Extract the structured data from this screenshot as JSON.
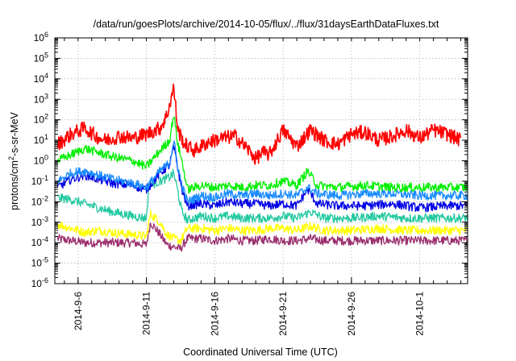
{
  "chart_data": {
    "type": "line",
    "title": "/data/run/goesPlots/archive/2014-10-05/flux/../flux/31daysEarthDataFluxes.txt",
    "xlabel": "Coordinated Universal Time (UTC)",
    "ylabel": "protons/cm2-s-sr-MeV",
    "ylabel_main": "protons/cm",
    "ylabel_sup": "2",
    "ylabel_rest": "-s-sr-MeV",
    "yscale": "log",
    "ylim_exp": [
      -6,
      6
    ],
    "ytick_labels": [
      {
        "base": "10",
        "exp": "6"
      },
      {
        "base": "10",
        "exp": "5"
      },
      {
        "base": "10",
        "exp": "4"
      },
      {
        "base": "10",
        "exp": "3"
      },
      {
        "base": "10",
        "exp": "2"
      },
      {
        "base": "10",
        "exp": "1"
      },
      {
        "base": "10",
        "exp": "0"
      },
      {
        "base": "10",
        "exp": "-1"
      },
      {
        "base": "10",
        "exp": "-2"
      },
      {
        "base": "10",
        "exp": "-3"
      },
      {
        "base": "10",
        "exp": "-4"
      },
      {
        "base": "10",
        "exp": "-5"
      },
      {
        "base": "10",
        "exp": "-6"
      }
    ],
    "xlim_days": [
      4.3,
      34.5
    ],
    "xtick_labels": [
      "2014-9-6",
      "2014-9-11",
      "2014-9-16",
      "2014-9-21",
      "2014-9-26",
      "2014-10-1"
    ],
    "xtick_days": [
      6,
      11,
      16,
      21,
      26,
      31
    ],
    "grid": true,
    "series": [
      {
        "color": "#ff0000",
        "values": [
          [
            4.5,
            0.8
          ],
          [
            5.5,
            1.3
          ],
          [
            6.5,
            1.6
          ],
          [
            7.3,
            1.2
          ],
          [
            8,
            1.0
          ],
          [
            9,
            1.2
          ],
          [
            10,
            1.1
          ],
          [
            11,
            1.3
          ],
          [
            12,
            1.6
          ],
          [
            12.5,
            2.2
          ],
          [
            13,
            3.6
          ],
          [
            13.3,
            1.5
          ],
          [
            13.8,
            0.8
          ],
          [
            14.5,
            0.5
          ],
          [
            15.5,
            0.9
          ],
          [
            16.5,
            1.1
          ],
          [
            17.5,
            1.2
          ],
          [
            18.5,
            0.5
          ],
          [
            19,
            0.1
          ],
          [
            19.5,
            0.4
          ],
          [
            20,
            0.3
          ],
          [
            21,
            1.5
          ],
          [
            22,
            0.7
          ],
          [
            23,
            1.5
          ],
          [
            24,
            1.0
          ],
          [
            25,
            0.8
          ],
          [
            26,
            1.3
          ],
          [
            27,
            1.4
          ],
          [
            28,
            1.0
          ],
          [
            29,
            1.2
          ],
          [
            30,
            1.5
          ],
          [
            31,
            1.1
          ],
          [
            32,
            1.5
          ],
          [
            33,
            1.3
          ],
          [
            34,
            1.0
          ]
        ]
      },
      {
        "color": "#00ee00",
        "values": [
          [
            4.5,
            0.0
          ],
          [
            5.5,
            0.3
          ],
          [
            6.5,
            0.6
          ],
          [
            7.5,
            0.4
          ],
          [
            8.5,
            0.2
          ],
          [
            10,
            0.0
          ],
          [
            11,
            -0.3
          ],
          [
            12,
            0.5
          ],
          [
            12.7,
            1.0
          ],
          [
            13,
            2.3
          ],
          [
            13.3,
            0.8
          ],
          [
            13.6,
            0.0
          ],
          [
            14.0,
            -1.4
          ],
          [
            15,
            -1.2
          ],
          [
            16,
            -1.3
          ],
          [
            17,
            -1.2
          ],
          [
            18,
            -1.3
          ],
          [
            19,
            -1.2
          ],
          [
            20,
            -1.2
          ],
          [
            21,
            -1.0
          ],
          [
            22,
            -1.2
          ],
          [
            22.8,
            -0.5
          ],
          [
            23.5,
            -1.2
          ],
          [
            25,
            -1.3
          ],
          [
            27,
            -1.2
          ],
          [
            29,
            -1.3
          ],
          [
            31,
            -1.3
          ],
          [
            33,
            -1.3
          ],
          [
            34.5,
            -1.3
          ]
        ]
      },
      {
        "color": "#1a8cff",
        "values": [
          [
            4.5,
            -1.0
          ],
          [
            5.5,
            -0.6
          ],
          [
            6.5,
            -0.5
          ],
          [
            7.5,
            -0.7
          ],
          [
            8.5,
            -0.9
          ],
          [
            10,
            -1.1
          ],
          [
            11,
            -1.3
          ],
          [
            12,
            -0.5
          ],
          [
            12.7,
            -0.1
          ],
          [
            13,
            1.0
          ],
          [
            13.3,
            -0.3
          ],
          [
            13.6,
            -1.2
          ],
          [
            14.0,
            -2.0
          ],
          [
            15,
            -1.7
          ],
          [
            16,
            -1.8
          ],
          [
            17,
            -1.6
          ],
          [
            18,
            -1.7
          ],
          [
            19,
            -1.6
          ],
          [
            20,
            -1.7
          ],
          [
            21,
            -1.6
          ],
          [
            22,
            -1.7
          ],
          [
            22.8,
            -1.3
          ],
          [
            23.5,
            -1.6
          ],
          [
            25,
            -1.7
          ],
          [
            27,
            -1.6
          ],
          [
            29,
            -1.6
          ],
          [
            31,
            -1.7
          ],
          [
            33,
            -1.7
          ],
          [
            34.5,
            -1.7
          ]
        ]
      },
      {
        "color": "#0000e6",
        "values": [
          [
            4.5,
            -1.3
          ],
          [
            5.5,
            -0.9
          ],
          [
            6.5,
            -0.7
          ],
          [
            7.5,
            -0.9
          ],
          [
            8.5,
            -1.1
          ],
          [
            10,
            -1.2
          ],
          [
            11,
            -1.4
          ],
          [
            12,
            -0.6
          ],
          [
            12.7,
            -0.2
          ],
          [
            13,
            0.7
          ],
          [
            13.3,
            -0.4
          ],
          [
            13.6,
            -1.4
          ],
          [
            14.0,
            -2.2
          ],
          [
            15,
            -2.1
          ],
          [
            16,
            -2.2
          ],
          [
            17,
            -2.0
          ],
          [
            18,
            -2.1
          ],
          [
            19,
            -2.1
          ],
          [
            20,
            -2.2
          ],
          [
            21,
            -2.1
          ],
          [
            22,
            -2.2
          ],
          [
            22.8,
            -1.4
          ],
          [
            23.5,
            -2.1
          ],
          [
            25,
            -2.2
          ],
          [
            27,
            -2.2
          ],
          [
            29,
            -2.1
          ],
          [
            31,
            -2.3
          ],
          [
            33,
            -2.2
          ],
          [
            34.5,
            -2.2
          ]
        ]
      },
      {
        "color": "#22c9a0",
        "values": [
          [
            4.5,
            -1.8
          ],
          [
            5.5,
            -1.9
          ],
          [
            6.5,
            -2.1
          ],
          [
            7.5,
            -2.3
          ],
          [
            8.5,
            -2.5
          ],
          [
            10,
            -2.7
          ],
          [
            11,
            -2.8
          ],
          [
            11.2,
            -1.2
          ],
          [
            12,
            -1.0
          ],
          [
            12.7,
            -0.8
          ],
          [
            13,
            -0.6
          ],
          [
            13.3,
            -1.5
          ],
          [
            13.6,
            -2.5
          ],
          [
            14.0,
            -2.9
          ],
          [
            15,
            -2.7
          ],
          [
            16,
            -2.8
          ],
          [
            17,
            -2.7
          ],
          [
            18,
            -2.8
          ],
          [
            19,
            -2.8
          ],
          [
            20,
            -2.8
          ],
          [
            21,
            -2.7
          ],
          [
            22,
            -2.8
          ],
          [
            23,
            -2.5
          ],
          [
            24,
            -2.8
          ],
          [
            26,
            -2.8
          ],
          [
            28,
            -2.7
          ],
          [
            30,
            -2.8
          ],
          [
            32,
            -2.8
          ],
          [
            34.5,
            -2.8
          ]
        ]
      },
      {
        "color": "#ffff00",
        "values": [
          [
            4.5,
            -3.1
          ],
          [
            5.5,
            -3.3
          ],
          [
            6.5,
            -3.5
          ],
          [
            7.5,
            -3.4
          ],
          [
            8.5,
            -3.5
          ],
          [
            10,
            -3.6
          ],
          [
            11,
            -3.7
          ],
          [
            11.3,
            -2.6
          ],
          [
            12,
            -3.0
          ],
          [
            12.5,
            -3.6
          ],
          [
            13,
            -3.8
          ],
          [
            13.5,
            -3.9
          ],
          [
            14.0,
            -3.3
          ],
          [
            15,
            -3.3
          ],
          [
            16,
            -3.4
          ],
          [
            17,
            -3.3
          ],
          [
            18,
            -3.4
          ],
          [
            19,
            -3.4
          ],
          [
            20,
            -3.3
          ],
          [
            21,
            -3.3
          ],
          [
            22,
            -3.4
          ],
          [
            23,
            -3.2
          ],
          [
            24,
            -3.4
          ],
          [
            26,
            -3.4
          ],
          [
            28,
            -3.3
          ],
          [
            30,
            -3.4
          ],
          [
            32,
            -3.4
          ],
          [
            34.5,
            -3.4
          ]
        ]
      },
      {
        "color": "#9b2f6e",
        "values": [
          [
            4.5,
            -3.8
          ],
          [
            5.5,
            -3.9
          ],
          [
            6.5,
            -4.0
          ],
          [
            7.5,
            -4.0
          ],
          [
            8.5,
            -4.0
          ],
          [
            10,
            -4.0
          ],
          [
            11,
            -4.1
          ],
          [
            11.3,
            -3.0
          ],
          [
            12,
            -3.6
          ],
          [
            12.5,
            -4.1
          ],
          [
            13,
            -4.2
          ],
          [
            13.5,
            -4.3
          ],
          [
            14.0,
            -3.8
          ],
          [
            15,
            -3.8
          ],
          [
            16,
            -3.9
          ],
          [
            17,
            -3.8
          ],
          [
            18,
            -3.9
          ],
          [
            19,
            -3.9
          ],
          [
            20,
            -3.8
          ],
          [
            21,
            -3.9
          ],
          [
            22,
            -3.9
          ],
          [
            23,
            -3.8
          ],
          [
            24,
            -3.9
          ],
          [
            26,
            -3.9
          ],
          [
            28,
            -3.9
          ],
          [
            30,
            -3.9
          ],
          [
            32,
            -3.9
          ],
          [
            34.5,
            -3.9
          ]
        ]
      }
    ]
  }
}
